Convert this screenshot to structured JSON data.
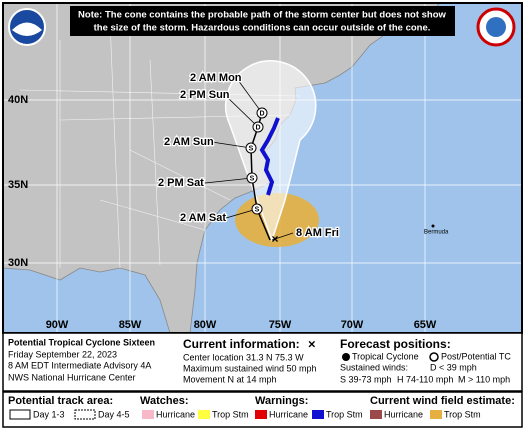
{
  "note": [
    "Note: The cone contains the probable path of the storm center but does not show",
    "the size of the storm. Hazardous conditions can occur outside of the cone."
  ],
  "map": {
    "track_labels": [
      "2 AM Mon",
      "2 PM Sun",
      "2 AM Sun",
      "2 PM Sat",
      "2 AM Sat",
      "8 AM Fri"
    ],
    "place": "Bermuda",
    "lat_labels": [
      "40N",
      "35N",
      "30N"
    ],
    "lon_labels": [
      "90W",
      "85W",
      "80W",
      "75W",
      "70W",
      "65W"
    ],
    "point_letters": [
      "S",
      "S",
      "S",
      "D",
      "D"
    ]
  },
  "info": {
    "title": "Potential Tropical Cyclone Sixteen",
    "date": "Friday September 22, 2023",
    "advisory": "8 AM EDT Intermediate Advisory 4A",
    "office": "NWS National Hurricane Center",
    "current_heading": "Current information:",
    "current_lines": [
      "Center location 31.3 N 75.3 W",
      "Maximum sustained wind 50 mph",
      "Movement N at 14 mph"
    ],
    "forecast_heading": "Forecast positions:",
    "tc": "Tropical Cyclone",
    "ptc": "Post/Potential TC",
    "winds_heading": "Sustained winds:",
    "winds": [
      "D < 39 mph",
      "S 39-73 mph",
      "H 74-110 mph",
      "M > 110 mph"
    ]
  },
  "legend": {
    "track_heading": "Potential track area:",
    "day13": "Day 1-3",
    "day45": "Day 4-5",
    "watches_heading": "Watches:",
    "watches": [
      "Hurricane",
      "Trop Stm"
    ],
    "warnings_heading": "Warnings:",
    "warnings": [
      "Hurricane",
      "Trop Stm"
    ],
    "wind_heading": "Current wind field estimate:",
    "wind": [
      "Hurricane",
      "Trop Stm"
    ]
  }
}
